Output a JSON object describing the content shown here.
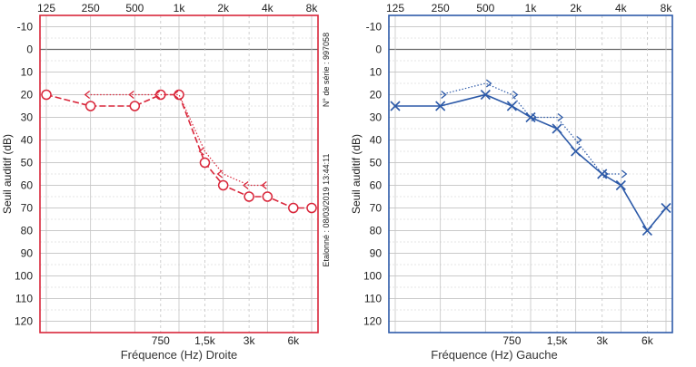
{
  "chart_data": [
    {
      "type": "line",
      "side": "right",
      "color": "#d9263a",
      "xlabel": "Fréquence (Hz) Droite",
      "ylabel": "Seuil auditif (dB)",
      "ylim": [
        -15,
        125
      ],
      "yticks": [
        "-10",
        "0",
        "10",
        "20",
        "30",
        "40",
        "50",
        "60",
        "70",
        "80",
        "90",
        "100",
        "110",
        "120"
      ],
      "xticks_top": [
        "125",
        "250",
        "500",
        "1k",
        "2k",
        "4k",
        "8k"
      ],
      "xticks_bottom": [
        "750",
        "1,5k",
        "3k",
        "6k"
      ],
      "grid": true,
      "serial": "N° de série : 997058",
      "calibrated": "Etalonné : 08/03/2019 13:44:11",
      "series": [
        {
          "marker": "circle",
          "style": "solid",
          "x": [
            125,
            250,
            500,
            750,
            1000,
            1500,
            2000,
            3000,
            4000,
            6000,
            8000
          ],
          "values": [
            20,
            25,
            25,
            20,
            20,
            50,
            60,
            65,
            65,
            70,
            70
          ]
        },
        {
          "marker": "bracket",
          "style": "dotted",
          "x": [
            250,
            500,
            750,
            1000,
            1500,
            2000,
            3000,
            4000
          ],
          "values": [
            20,
            20,
            20,
            20,
            45,
            55,
            60,
            60
          ]
        }
      ]
    },
    {
      "type": "line",
      "side": "left",
      "color": "#2d5aa8",
      "xlabel": "Fréquence (Hz) Gauche",
      "ylabel": "Seuil auditif (dB)",
      "ylim": [
        -15,
        125
      ],
      "yticks": [
        "-10",
        "0",
        "10",
        "20",
        "30",
        "40",
        "50",
        "60",
        "70",
        "80",
        "90",
        "100",
        "110",
        "120"
      ],
      "xticks_top": [
        "125",
        "250",
        "500",
        "1k",
        "2k",
        "4k",
        "8k"
      ],
      "xticks_bottom": [
        "750",
        "1,5k",
        "3k",
        "6k"
      ],
      "grid": true,
      "series": [
        {
          "marker": "cross",
          "style": "solid",
          "x": [
            125,
            250,
            500,
            750,
            1000,
            1500,
            2000,
            3000,
            4000,
            6000,
            8000
          ],
          "values": [
            25,
            25,
            20,
            25,
            30,
            35,
            45,
            55,
            60,
            80,
            70
          ]
        },
        {
          "marker": "bracket",
          "style": "dotted",
          "x": [
            250,
            500,
            750,
            1000,
            1500,
            2000,
            3000,
            4000
          ],
          "values": [
            20,
            15,
            20,
            30,
            30,
            40,
            55,
            55
          ]
        }
      ]
    }
  ]
}
